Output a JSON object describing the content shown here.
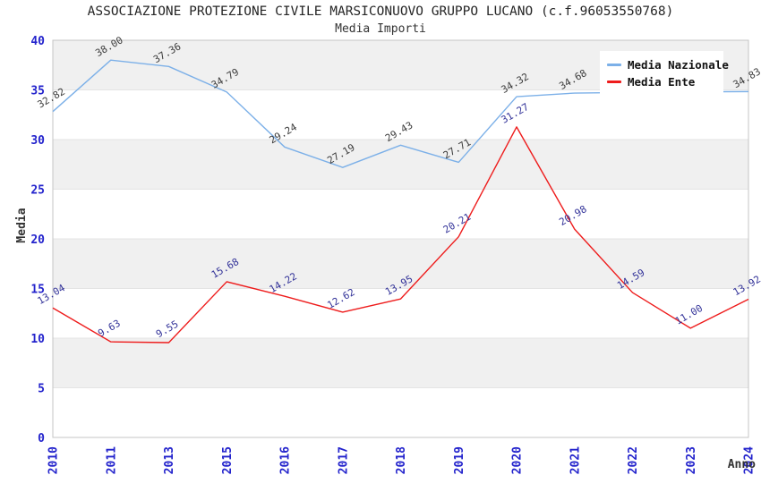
{
  "header": {
    "title": "ASSOCIAZIONE PROTEZIONE CIVILE MARSICONUOVO GRUPPO LUCANO (c.f.96053550768)",
    "subtitle": "Media Importi"
  },
  "axes": {
    "y_title": "Media",
    "x_title": "Anno"
  },
  "legend": {
    "position": "top-right",
    "items": [
      {
        "label": "Media Nazionale",
        "color": "#7cb0e8"
      },
      {
        "label": "Media Ente",
        "color": "#ee1c1c"
      }
    ]
  },
  "colors": {
    "tick_label_blue": "#2323cc",
    "band_gray": "#f0f0f0",
    "band_white": "#ffffff",
    "gridline": "#e4e4e4",
    "plot_border": "#c4c4c4",
    "series_blue": "#7cb0e8",
    "series_red": "#ee1c1c",
    "datalabel_dark": "#3c3c3c",
    "datalabel_navy": "#333399"
  },
  "chart_data": {
    "type": "line",
    "title": "Media Importi",
    "xlabel": "Anno",
    "ylabel": "Media",
    "categories": [
      "2010",
      "2011",
      "2013",
      "2015",
      "2016",
      "2017",
      "2018",
      "2019",
      "2020",
      "2021",
      "2022",
      "2023",
      "2024"
    ],
    "series": [
      {
        "name": "Media Nazionale",
        "color": "#7cb0e8",
        "label_color": "#3c3c3c",
        "values": [
          32.82,
          38.0,
          37.36,
          34.79,
          29.24,
          27.19,
          29.43,
          27.71,
          34.32,
          34.68,
          34.75,
          34.8,
          34.83
        ],
        "labels": [
          "32.82",
          "38.00",
          "37.36",
          "34.79",
          "29.24",
          "27.19",
          "29.43",
          "27.71",
          "34.32",
          "34.68",
          "",
          "",
          "34.83"
        ]
      },
      {
        "name": "Media Ente",
        "color": "#ee1c1c",
        "label_color": "#333399",
        "values": [
          13.04,
          9.63,
          9.55,
          15.68,
          14.22,
          12.62,
          13.95,
          20.21,
          31.27,
          20.98,
          14.59,
          11.0,
          13.92
        ],
        "labels": [
          "13.04",
          "9.63",
          "9.55",
          "15.68",
          "14.22",
          "12.62",
          "13.95",
          "20.21",
          "31.27",
          "20.98",
          "14.59",
          "11.00",
          "13.92"
        ]
      }
    ],
    "ylim": [
      0,
      40
    ],
    "yticks": [
      0,
      5,
      10,
      15,
      20,
      25,
      30,
      35,
      40
    ],
    "grid": "alternating-bands",
    "legend_position": "top-right"
  }
}
